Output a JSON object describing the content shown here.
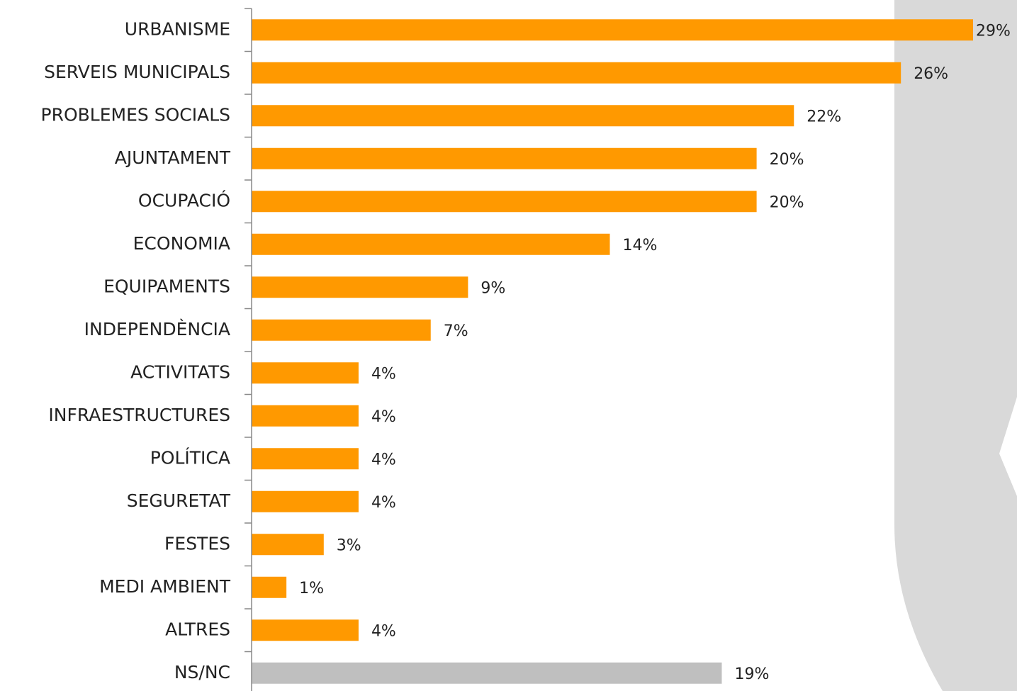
{
  "chart_data": {
    "type": "hbar",
    "categories": [
      "URBANISME",
      "SERVEIS MUNICIPALS",
      "PROBLEMES SOCIALS",
      "AJUNTAMENT",
      "OCUPACIÓ",
      "ECONOMIA",
      "EQUIPAMENTS",
      "INDEPENDÈNCIA",
      "ACTIVITATS",
      "INFRAESTRUCTURES",
      "POLÍTICA",
      "SEGURETAT",
      "FESTES",
      "MEDI AMBIENT",
      "ALTRES",
      "NS/NC"
    ],
    "values": [
      29.0,
      26.1,
      21.8,
      20.3,
      20.3,
      14.4,
      8.7,
      7.2,
      4.3,
      4.3,
      4.3,
      4.3,
      2.9,
      1.4,
      4.3,
      18.9
    ],
    "value_labels": [
      "29%",
      "26%",
      "22%",
      "20%",
      "20%",
      "14%",
      "9%",
      "7%",
      "4%",
      "4%",
      "4%",
      "4%",
      "3%",
      "1%",
      "4%",
      "19%"
    ],
    "colors": [
      "#ff9900",
      "#ff9900",
      "#ff9900",
      "#ff9900",
      "#ff9900",
      "#ff9900",
      "#ff9900",
      "#ff9900",
      "#ff9900",
      "#ff9900",
      "#ff9900",
      "#ff9900",
      "#ff9900",
      "#ff9900",
      "#ff9900",
      "#bfbfbf"
    ]
  }
}
